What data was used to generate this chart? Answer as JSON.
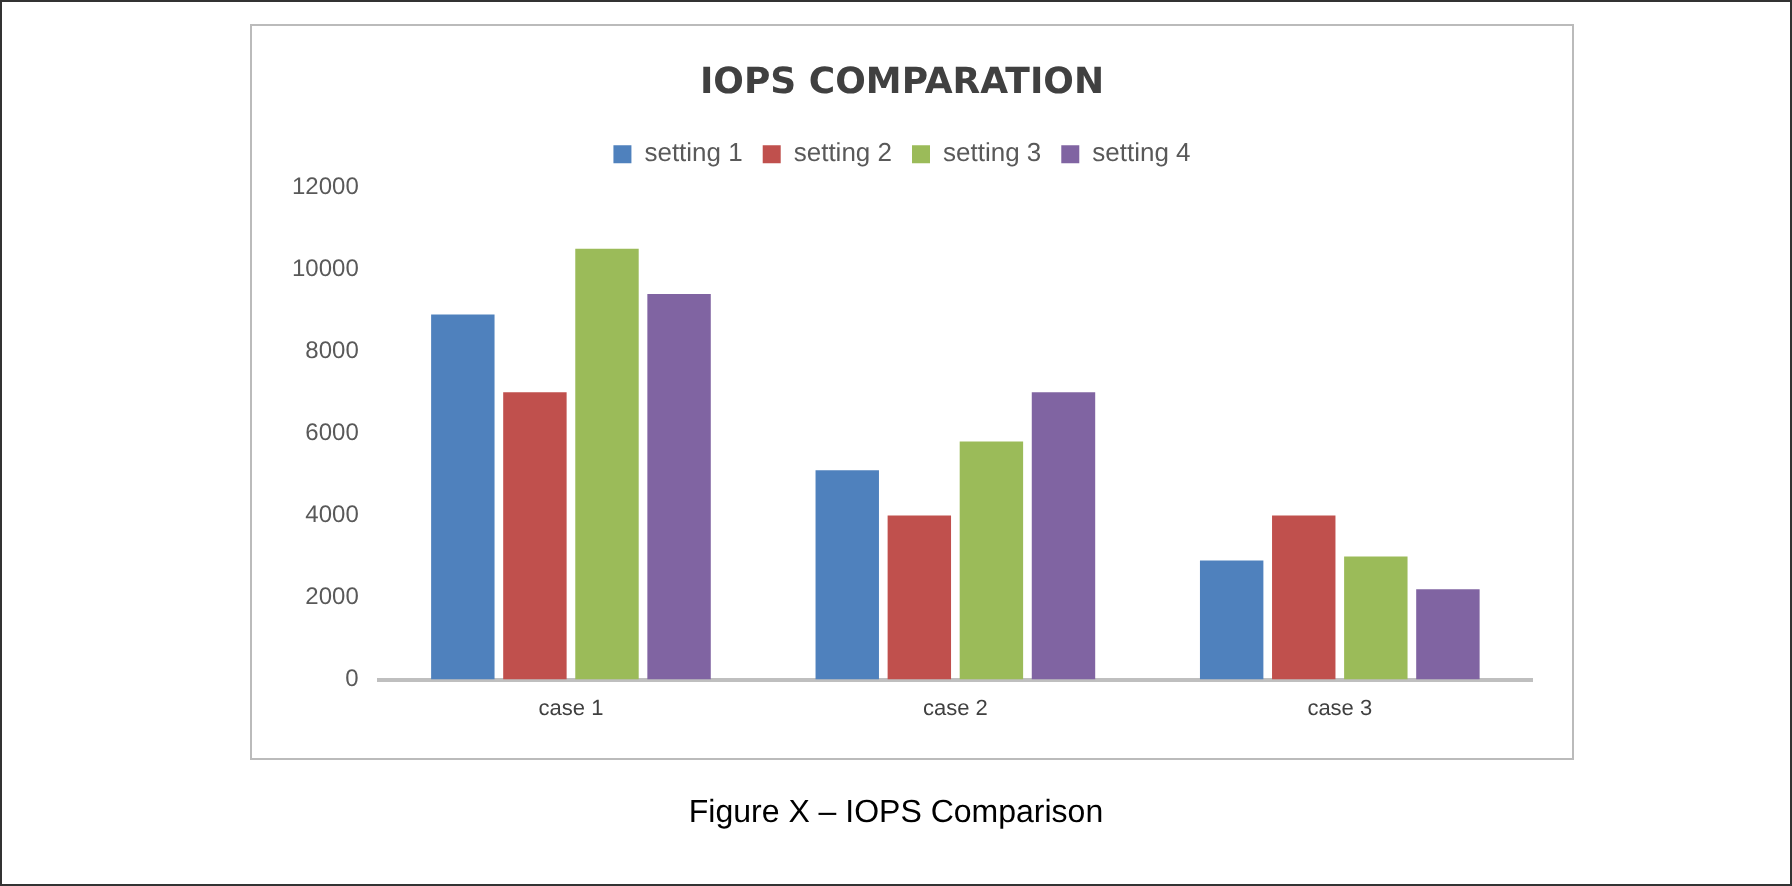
{
  "chart_data": {
    "type": "bar",
    "title": "IOPS COMPARATION",
    "categories": [
      "case 1",
      "case 2",
      "case 3"
    ],
    "series": [
      {
        "name": "setting 1",
        "color": "#4f81bd",
        "values": [
          8900,
          5100,
          2900
        ]
      },
      {
        "name": "setting 2",
        "color": "#c0504d",
        "values": [
          7000,
          4000,
          4000
        ]
      },
      {
        "name": "setting 3",
        "color": "#9bbb59",
        "values": [
          10500,
          5800,
          3000
        ]
      },
      {
        "name": "setting 4",
        "color": "#8064a2",
        "values": [
          9400,
          7000,
          2200
        ]
      }
    ],
    "ylim": [
      0,
      12000
    ],
    "yticks": [
      0,
      2000,
      4000,
      6000,
      8000,
      10000,
      12000
    ],
    "grid": false,
    "legend": "top",
    "annotations": [
      "Figure X – IOPS Comparison"
    ]
  }
}
